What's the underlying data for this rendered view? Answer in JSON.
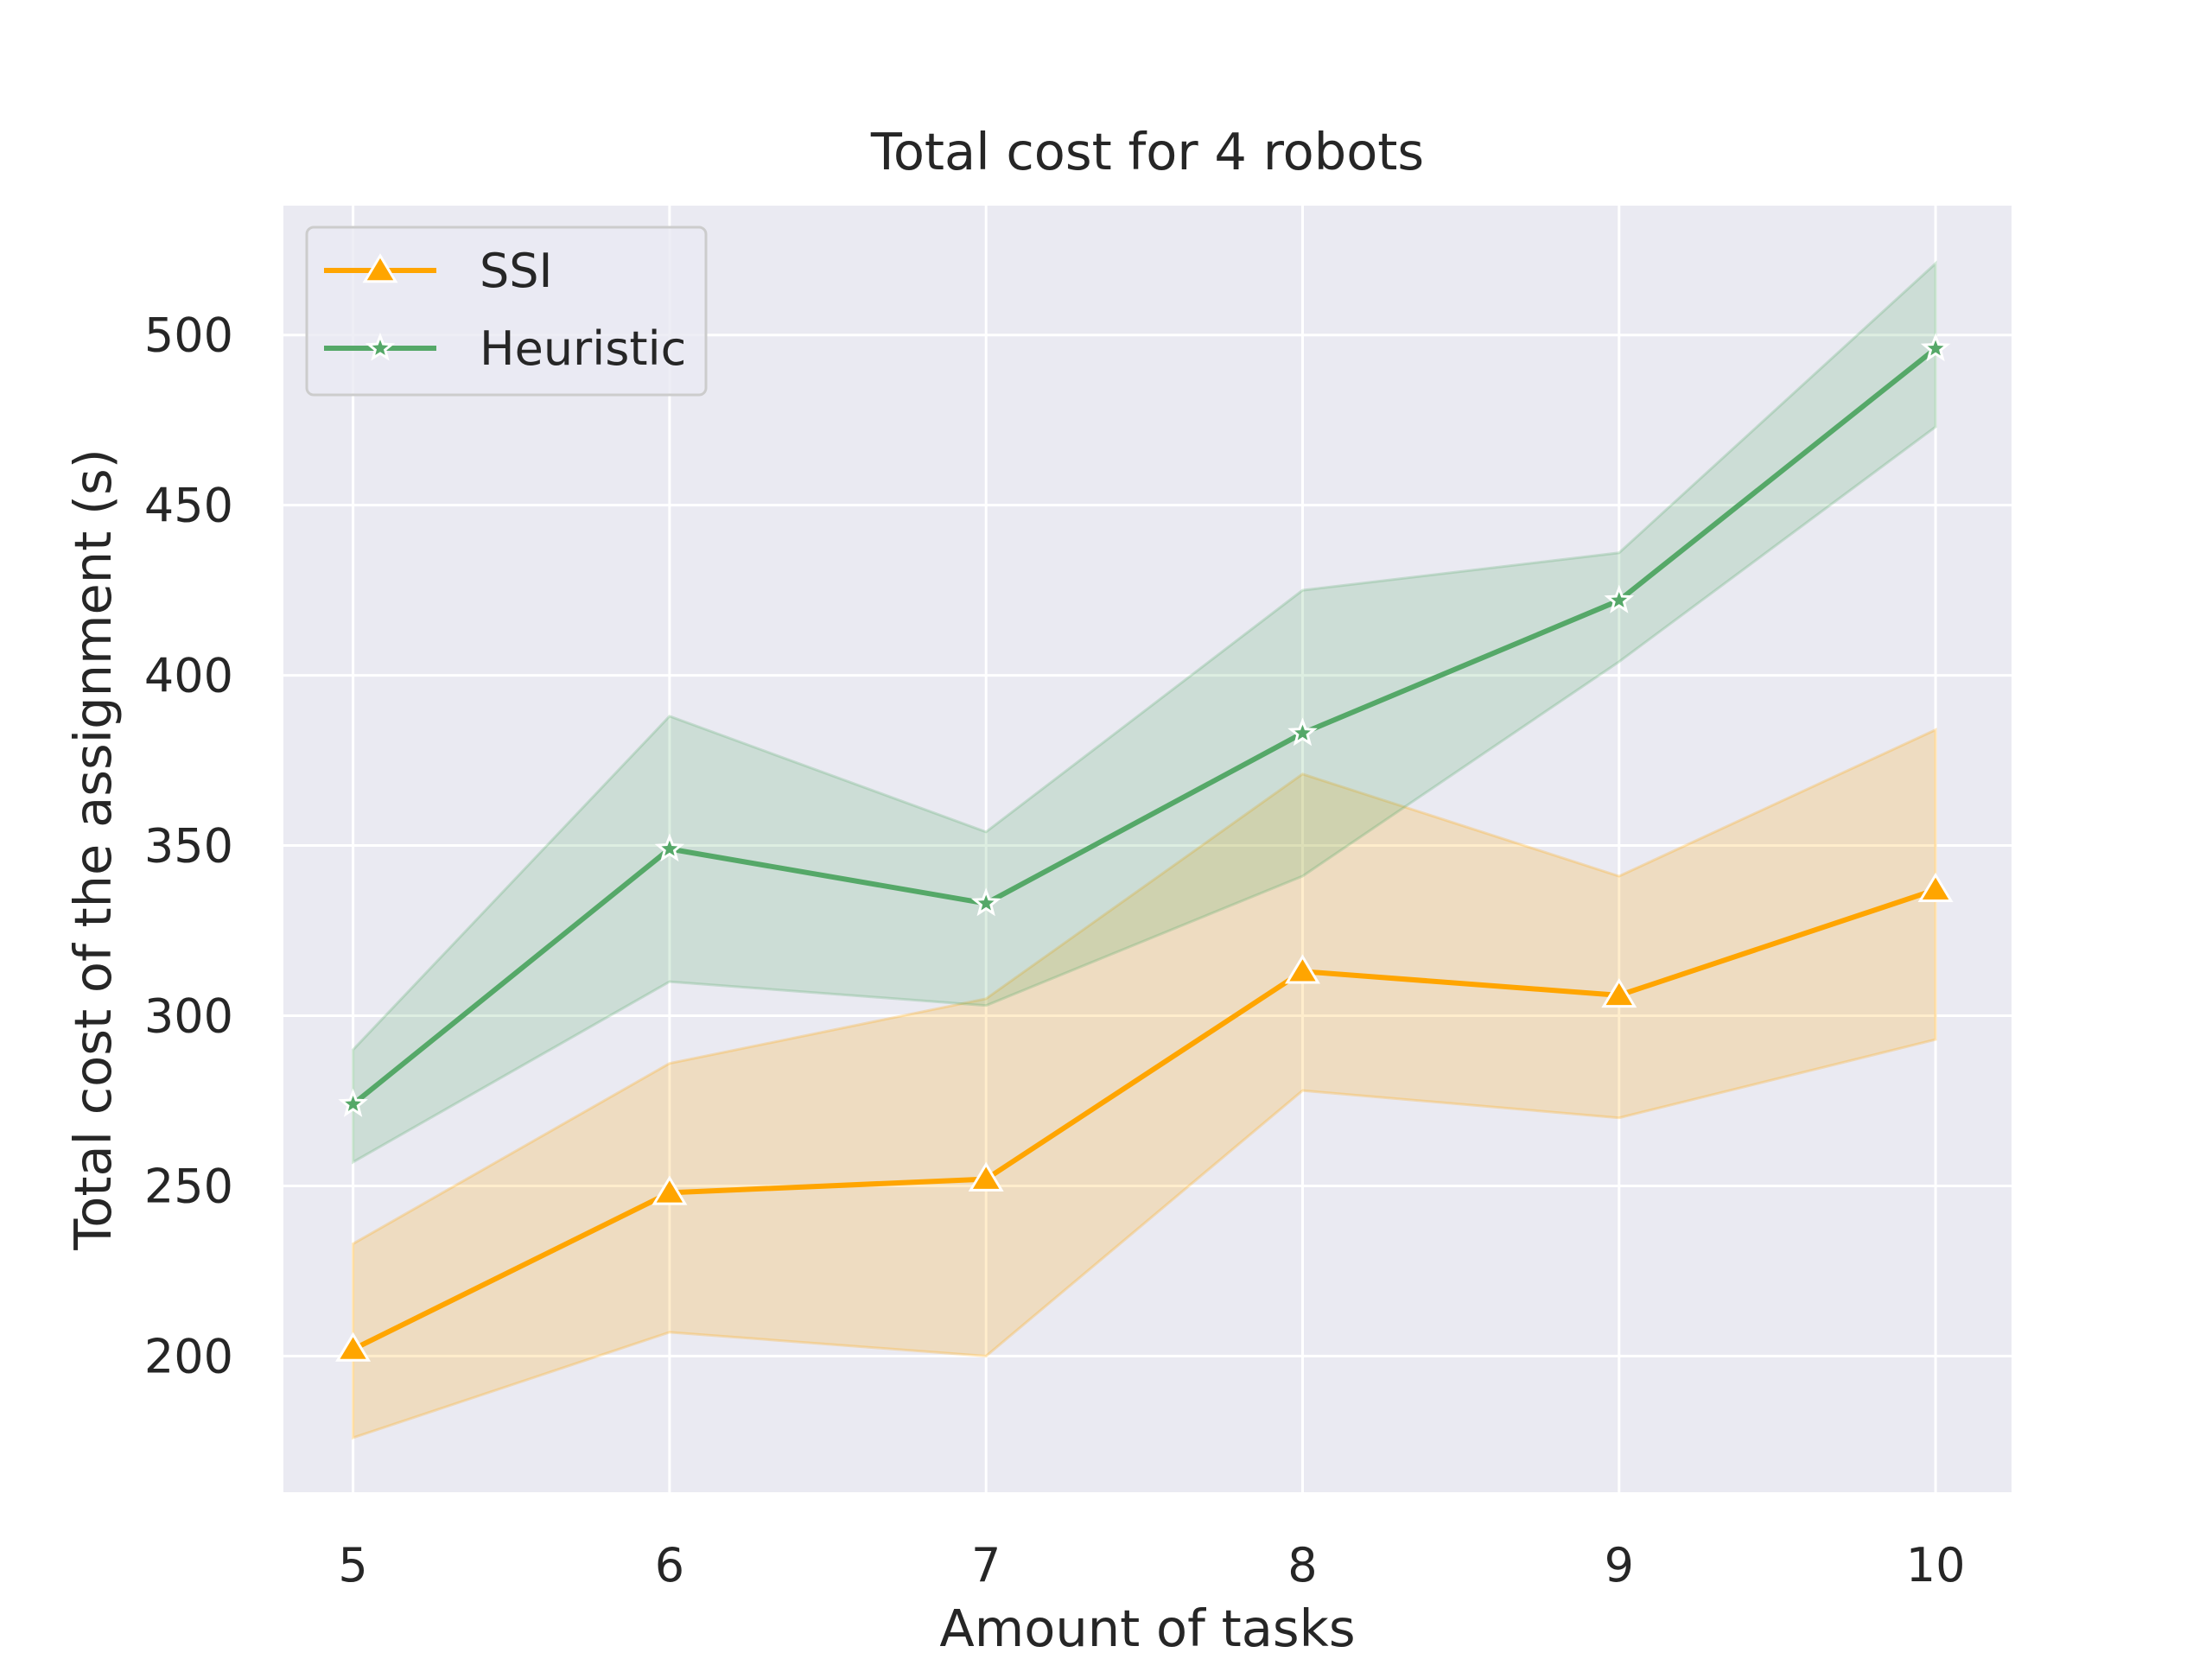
{
  "chart_data": {
    "type": "line",
    "title": "Total cost for 4 robots",
    "xlabel": "Amount of tasks",
    "ylabel": "Total cost of the assignment (s)",
    "x": [
      5,
      6,
      7,
      8,
      9,
      10
    ],
    "xlim": [
      4.78,
      10.24
    ],
    "ylim": [
      160,
      538
    ],
    "yticks": [
      200,
      250,
      300,
      350,
      400,
      450,
      500
    ],
    "grid": true,
    "legend_position": "top-left",
    "background": "#eaeaf2",
    "series": [
      {
        "name": "SSI",
        "color": "#ffa500",
        "marker": "triangle",
        "values": [
          202,
          248,
          252,
          313,
          306,
          337
        ],
        "ci_lower": [
          176,
          207,
          200,
          278,
          270,
          293
        ],
        "ci_upper": [
          233,
          286,
          305,
          371,
          341,
          384
        ]
      },
      {
        "name": "Heuristic",
        "color": "#55a868",
        "marker": "star",
        "values": [
          274,
          349,
          333,
          383,
          422,
          496
        ],
        "ci_lower": [
          257,
          310,
          303,
          341,
          404,
          473
        ],
        "ci_upper": [
          290,
          388,
          354,
          425,
          436,
          521
        ]
      }
    ]
  }
}
